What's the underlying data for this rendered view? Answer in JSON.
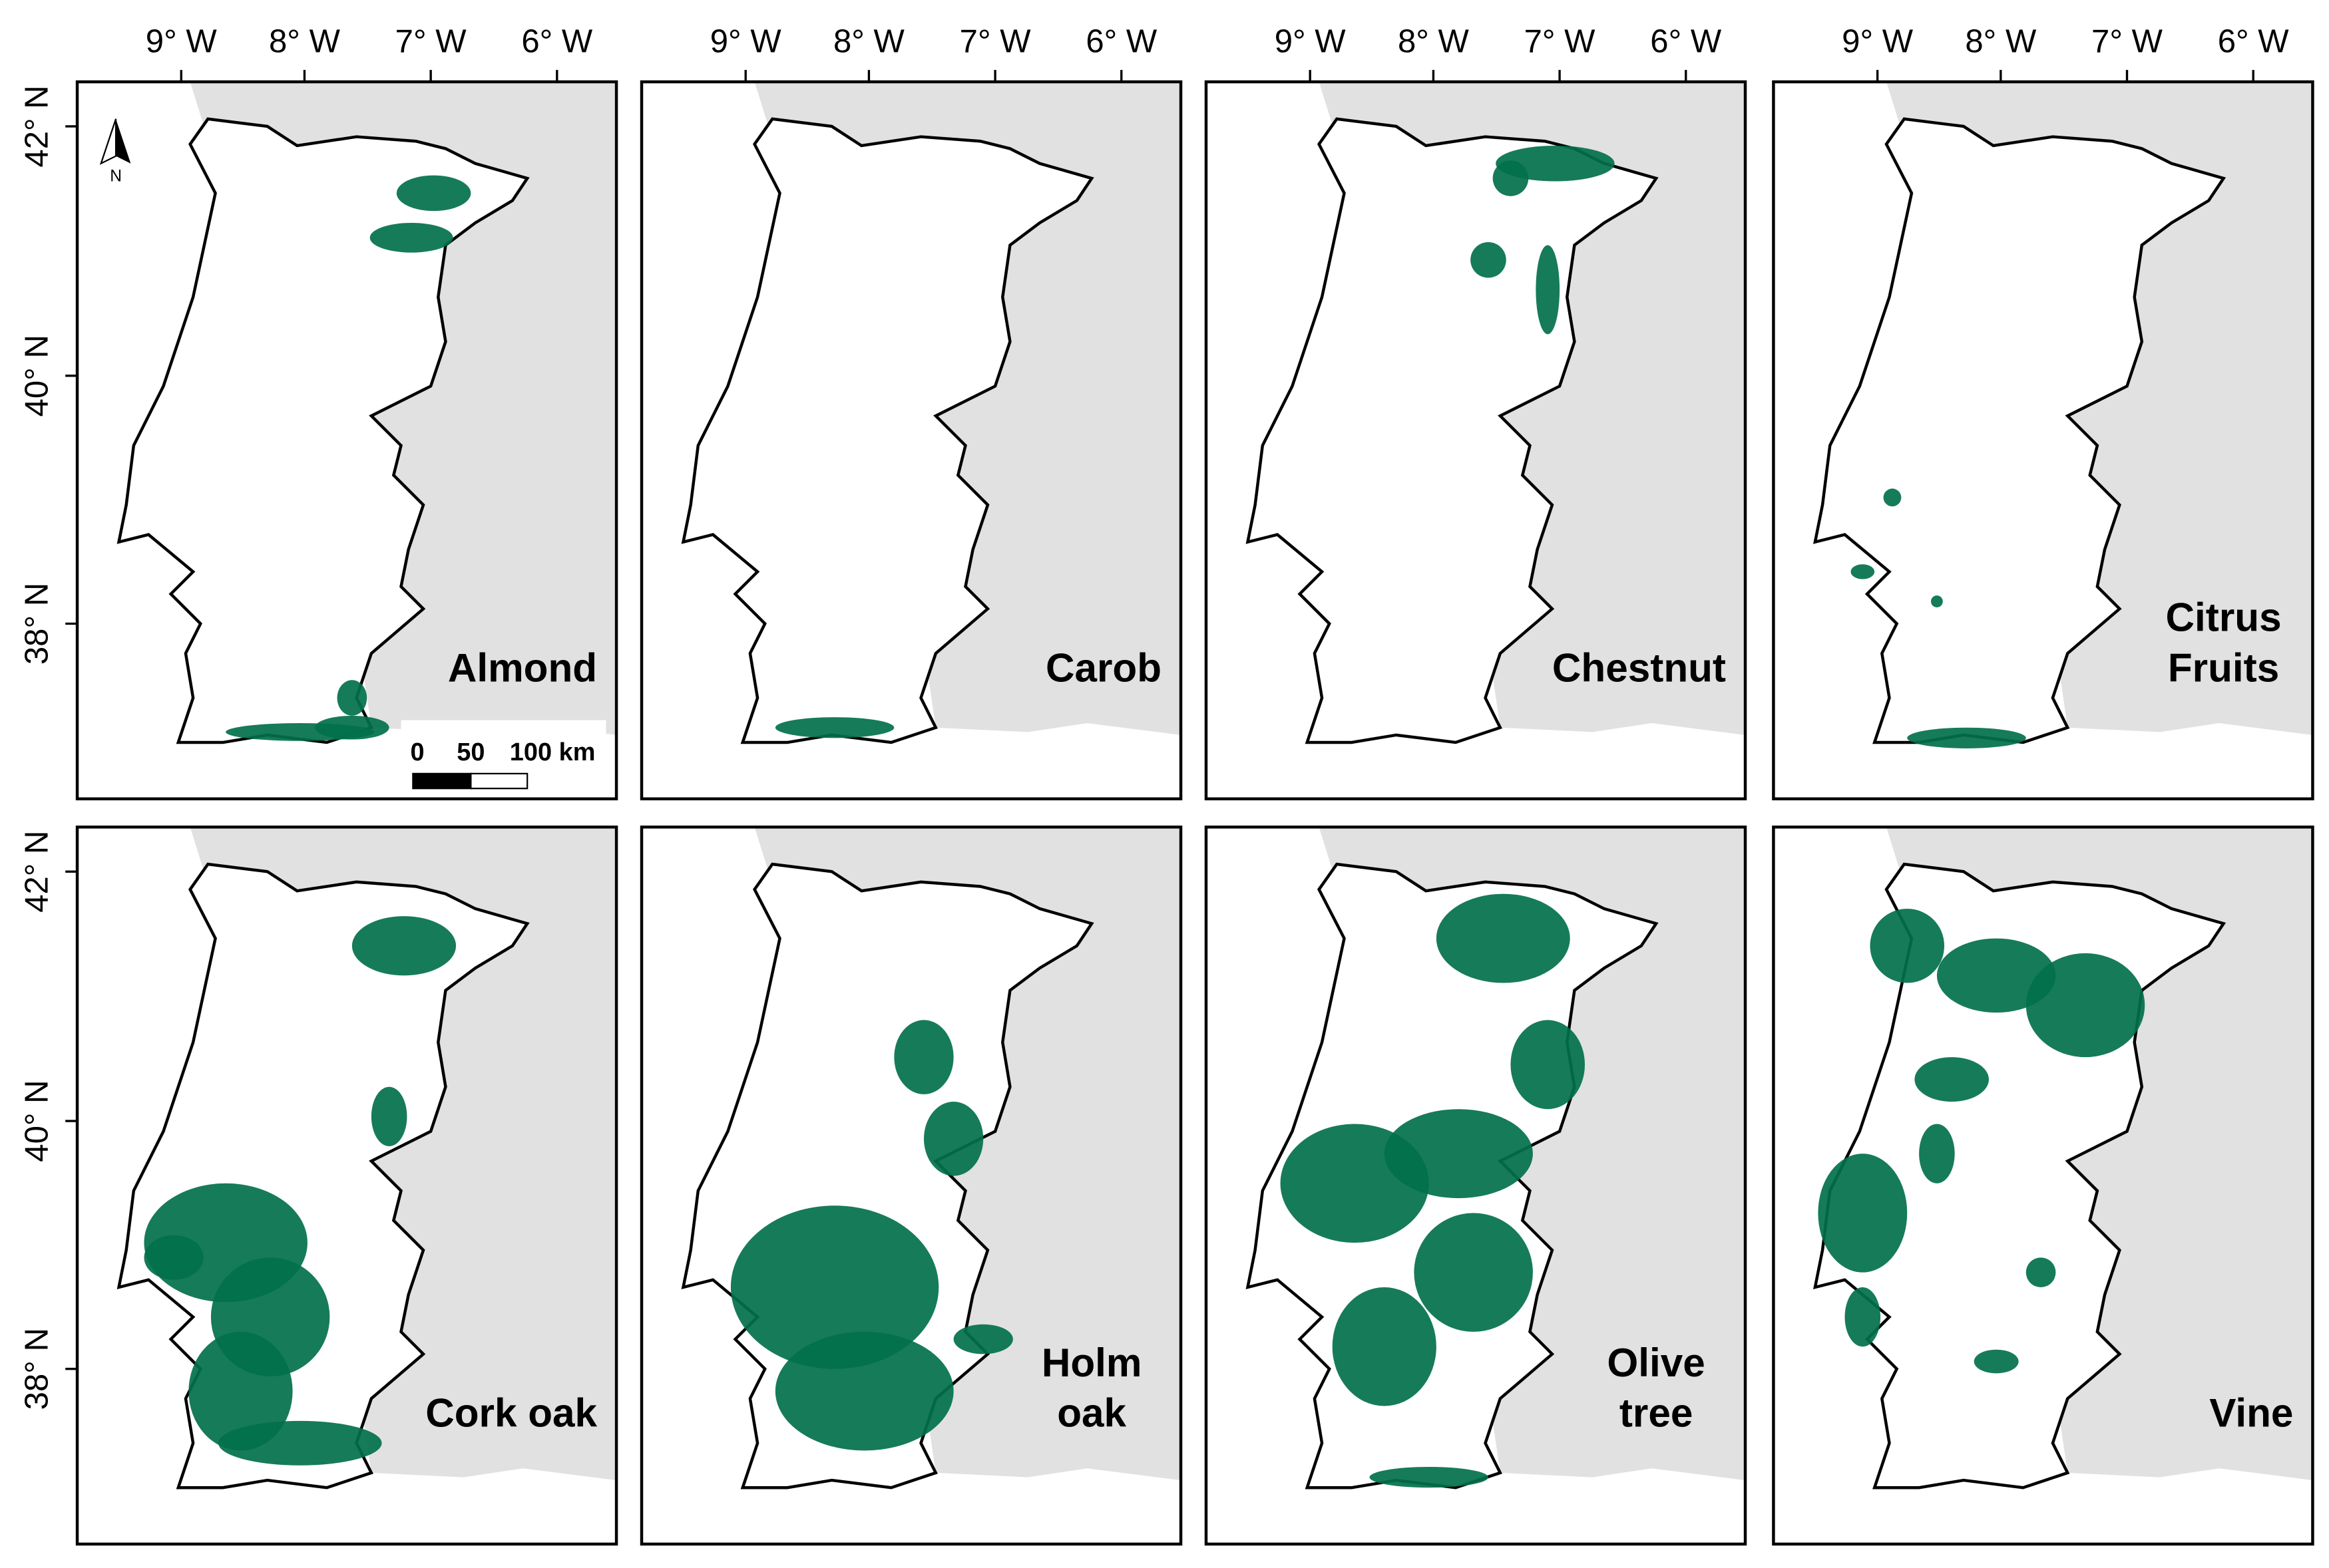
{
  "x_ticks": [
    "9° W",
    "8° W",
    "7° W",
    "6° W"
  ],
  "y_ticks": [
    "42° N",
    "40° N",
    "38° N"
  ],
  "panels": [
    {
      "label": [
        "Almond"
      ]
    },
    {
      "label": [
        "Carob"
      ]
    },
    {
      "label": [
        "Chestnut"
      ]
    },
    {
      "label": [
        "Citrus",
        "Fruits"
      ]
    },
    {
      "label": [
        "Cork oak"
      ]
    },
    {
      "label": [
        "Holm",
        "oak"
      ]
    },
    {
      "label": [
        "Olive",
        "tree"
      ]
    },
    {
      "label": [
        "Vine"
      ]
    }
  ],
  "scale_bar": {
    "labels": [
      "0",
      "50",
      "100 km"
    ]
  },
  "north_arrow": "N"
}
